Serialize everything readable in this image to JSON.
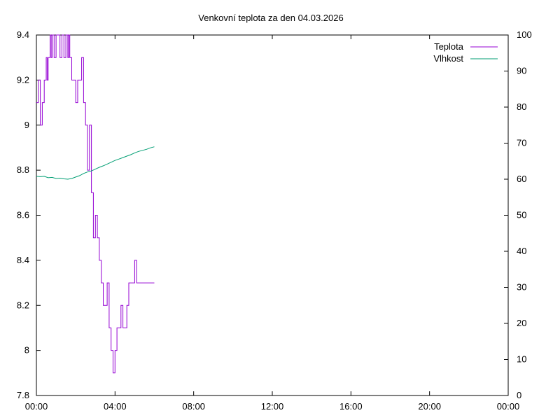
{
  "chart_data": {
    "type": "line",
    "title": "Venkovní teplota za den 04.03.2026",
    "x_ticks": [
      "00:00",
      "04:00",
      "08:00",
      "12:00",
      "16:00",
      "20:00",
      "00:00"
    ],
    "xlim_hours": [
      0,
      24
    ],
    "y1_ticks": [
      "9.4",
      "9.2",
      "9",
      "8.8",
      "8.6",
      "8.4",
      "8.2",
      "8",
      "7.8"
    ],
    "y1lim": [
      7.8,
      9.4
    ],
    "y2_ticks": [
      "100",
      "90",
      "80",
      "70",
      "60",
      "50",
      "40",
      "30",
      "20",
      "10",
      "0"
    ],
    "y2lim": [
      0,
      100
    ],
    "grid": false,
    "legend_position": "top-right",
    "series": [
      {
        "name": "Teplota",
        "axis": "y1",
        "color": "#9400d3",
        "x": [
          0.0,
          0.1,
          0.2,
          0.3,
          0.4,
          0.5,
          0.55,
          0.6,
          0.7,
          0.75,
          0.8,
          0.9,
          1.0,
          1.1,
          1.2,
          1.3,
          1.4,
          1.5,
          1.6,
          1.65,
          1.7,
          1.8,
          1.9,
          2.0,
          2.1,
          2.2,
          2.3,
          2.4,
          2.5,
          2.6,
          2.7,
          2.8,
          2.9,
          3.0,
          3.1,
          3.2,
          3.3,
          3.4,
          3.5,
          3.6,
          3.7,
          3.8,
          3.9,
          4.0,
          4.1,
          4.2,
          4.3,
          4.4,
          4.5,
          4.6,
          4.7,
          4.8,
          4.9,
          5.0,
          5.1,
          5.2,
          5.3,
          5.4,
          5.5,
          5.6,
          5.7,
          5.8,
          5.9,
          6.0
        ],
        "values": [
          9.1,
          9.2,
          9.0,
          9.1,
          9.2,
          9.3,
          9.2,
          9.3,
          9.4,
          9.3,
          9.4,
          9.3,
          9.4,
          9.4,
          9.3,
          9.4,
          9.3,
          9.4,
          9.3,
          9.4,
          9.3,
          9.2,
          9.2,
          9.1,
          9.2,
          9.2,
          9.3,
          9.1,
          9.0,
          8.8,
          9.0,
          8.7,
          8.5,
          8.6,
          8.5,
          8.4,
          8.3,
          8.2,
          8.2,
          8.3,
          8.1,
          8.0,
          7.9,
          8.0,
          8.1,
          8.1,
          8.2,
          8.1,
          8.1,
          8.2,
          8.3,
          8.3,
          8.3,
          8.4,
          8.3,
          8.3,
          8.3,
          8.3,
          8.3,
          8.3,
          8.3,
          8.3,
          8.3,
          8.3
        ]
      },
      {
        "name": "Vlhkost",
        "axis": "y2",
        "color": "#009e73",
        "x": [
          0.0,
          0.2,
          0.4,
          0.6,
          0.8,
          1.0,
          1.2,
          1.4,
          1.6,
          1.8,
          2.0,
          2.2,
          2.4,
          2.6,
          2.8,
          3.0,
          3.2,
          3.4,
          3.6,
          3.8,
          4.0,
          4.2,
          4.4,
          4.6,
          4.8,
          5.0,
          5.2,
          5.4,
          5.6,
          5.8,
          6.0
        ],
        "values": [
          60.8,
          60.7,
          60.8,
          60.4,
          60.5,
          60.2,
          60.3,
          60.1,
          60.0,
          60.2,
          60.6,
          61.0,
          61.6,
          62.0,
          62.3,
          62.8,
          63.3,
          63.7,
          64.2,
          64.7,
          65.2,
          65.6,
          66.0,
          66.4,
          66.8,
          67.3,
          67.7,
          68.0,
          68.3,
          68.7,
          69.0
        ]
      }
    ]
  }
}
